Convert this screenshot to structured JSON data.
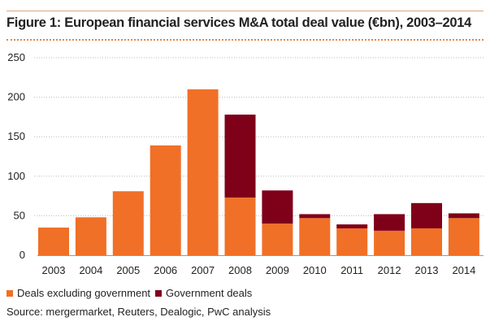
{
  "chart_data": {
    "type": "bar",
    "stacked": true,
    "title": "Figure 1: European financial services M&A total deal value (€bn), 2003–2014",
    "xlabel": "",
    "ylabel": "",
    "ylim": [
      0,
      250
    ],
    "yticks": [
      0,
      50,
      100,
      150,
      200,
      250
    ],
    "grid": "horizontal dotted",
    "legend_position": "bottom-left",
    "categories": [
      "2003",
      "2004",
      "2005",
      "2006",
      "2007",
      "2008",
      "2009",
      "2010",
      "2011",
      "2012",
      "2013",
      "2014"
    ],
    "series": [
      {
        "name": "Deals excluding government",
        "color": "#f07027",
        "values": [
          35,
          48,
          81,
          139,
          210,
          73,
          40,
          47,
          34,
          31,
          34,
          47
        ]
      },
      {
        "name": "Government deals",
        "color": "#7f0019",
        "values": [
          0,
          0,
          0,
          0,
          0,
          105,
          42,
          5,
          5,
          21,
          32,
          6
        ]
      }
    ],
    "source": "Source: mergermarket, Reuters, Dealogic, PwC analysis"
  }
}
